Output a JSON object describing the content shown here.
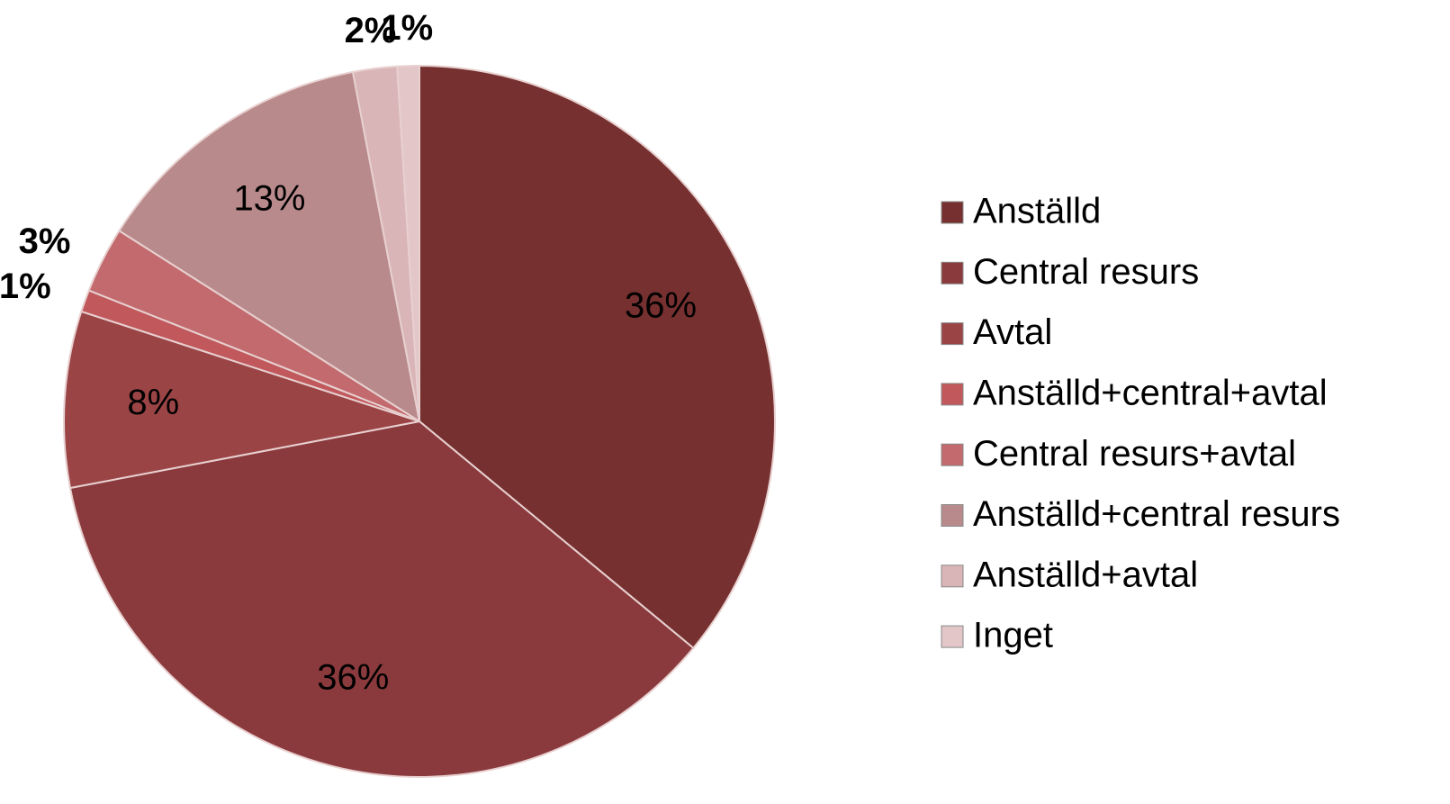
{
  "chart_data": {
    "type": "pie",
    "categories": [
      "Anställd",
      "Central resurs",
      "Avtal",
      "Anställd+central+avtal",
      "Central resurs+avtal",
      "Anställd+central resurs",
      "Anställd+avtal",
      "Inget"
    ],
    "values": [
      36,
      36,
      8,
      1,
      3,
      13,
      2,
      1
    ],
    "value_labels": [
      "36%",
      "36%",
      "8%",
      "1%",
      "3%",
      "13%",
      "2%",
      "1%"
    ],
    "colors": [
      "#76302f",
      "#8a3a3c",
      "#9b4446",
      "#c0585c",
      "#c26a6d",
      "#b98a8c",
      "#d9b5b7",
      "#e2c6c8"
    ]
  }
}
